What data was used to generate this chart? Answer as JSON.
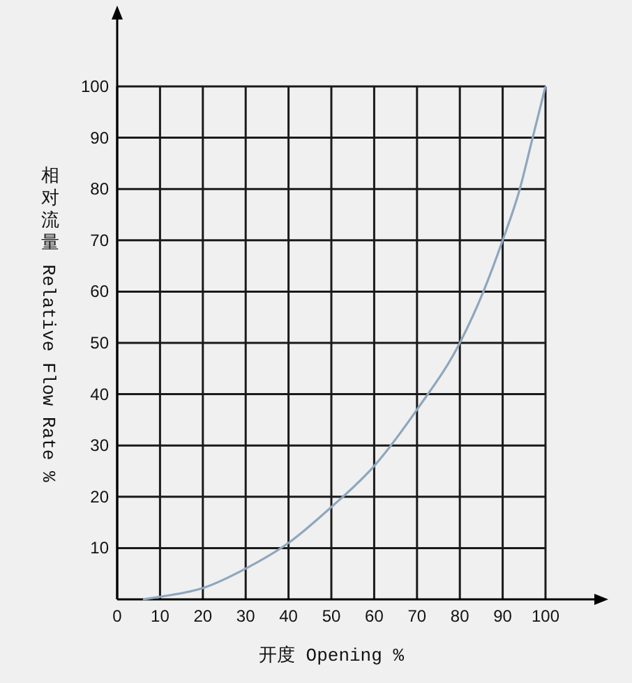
{
  "chart_data": {
    "type": "line",
    "xlabel": "开度 Opening %",
    "ylabel": "相对流量 Relative Flow Rate %",
    "x": [
      6,
      10,
      20,
      30,
      40,
      50,
      60,
      70,
      80,
      85.5,
      90,
      94,
      97,
      100
    ],
    "series": [
      {
        "color": "#8fa6bd",
        "values": [
          0,
          0.5,
          2.2,
          6,
          11,
          18,
          26,
          37,
          50,
          60,
          70,
          80,
          90,
          100
        ]
      }
    ],
    "xlim": [
      0,
      100
    ],
    "ylim": [
      0,
      100
    ],
    "xticks": [
      0,
      10,
      20,
      30,
      40,
      50,
      60,
      70,
      80,
      90,
      100
    ],
    "yticks": [
      10,
      20,
      30,
      40,
      50,
      60,
      70,
      80,
      90,
      100
    ],
    "grid": true,
    "marker": "none",
    "line_style": "solid"
  }
}
